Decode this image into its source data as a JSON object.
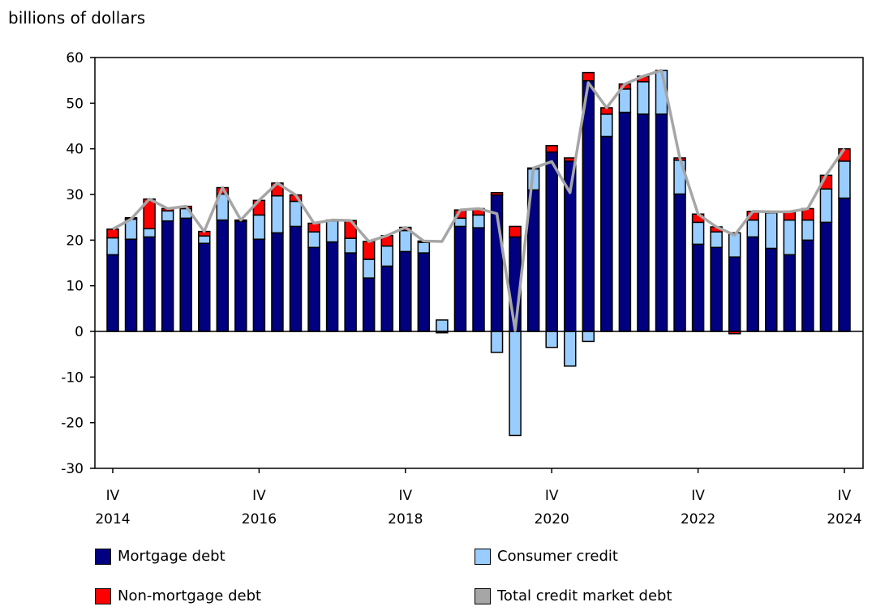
{
  "chart_data": {
    "type": "bar",
    "stacked": true,
    "ylabel": "billions of dollars",
    "ylim": [
      -30,
      60
    ],
    "yticks": [
      -30,
      -20,
      -10,
      0,
      10,
      20,
      30,
      40,
      50,
      60
    ],
    "grid": false,
    "legend_position": "bottom",
    "x_tick_labels": [
      {
        "quarter": "IV",
        "year": "2014",
        "index": 0
      },
      {
        "quarter": "IV",
        "year": "2016",
        "index": 8
      },
      {
        "quarter": "IV",
        "year": "2018",
        "index": 16
      },
      {
        "quarter": "IV",
        "year": "2020",
        "index": 24
      },
      {
        "quarter": "IV",
        "year": "2022",
        "index": 32
      },
      {
        "quarter": "IV",
        "year": "2024",
        "index": 40
      }
    ],
    "categories": [
      "2014Q4",
      "2015Q1",
      "2015Q2",
      "2015Q3",
      "2015Q4",
      "2016Q1",
      "2016Q2",
      "2016Q3",
      "2016Q4",
      "2017Q1",
      "2017Q2",
      "2017Q3",
      "2017Q4",
      "2018Q1",
      "2018Q2",
      "2018Q3",
      "2018Q4",
      "2019Q1",
      "2019Q2",
      "2019Q3",
      "2019Q4",
      "2020Q1",
      "2020Q2",
      "2020Q3",
      "2020Q4",
      "2021Q1",
      "2021Q2",
      "2021Q3",
      "2021Q4",
      "2022Q1",
      "2022Q2",
      "2022Q3",
      "2022Q4",
      "2023Q1",
      "2023Q2",
      "2023Q3",
      "2023Q4",
      "2024Q1",
      "2024Q2",
      "2024Q3",
      "2024Q4"
    ],
    "series": [
      {
        "name": "Mortgage debt",
        "color": "#000080",
        "kind": "bar",
        "values": [
          16.8,
          20.2,
          20.7,
          24.2,
          24.8,
          19.3,
          24.4,
          24.1,
          20.2,
          21.6,
          23.0,
          18.4,
          19.6,
          17.2,
          11.7,
          14.3,
          17.5,
          17.2,
          -0.3,
          23.0,
          22.7,
          29.9,
          20.7,
          31.0,
          39.3,
          37.3,
          54.9,
          42.7,
          48.0,
          47.6,
          47.6,
          30.1,
          19.1,
          18.4,
          16.3,
          20.7,
          18.2,
          16.8,
          20.0,
          23.9,
          29.2
        ]
      },
      {
        "name": "Consumer credit",
        "color": "#99CCFF",
        "kind": "bar",
        "values": [
          3.7,
          4.4,
          1.8,
          2.2,
          2.1,
          1.6,
          5.7,
          0.0,
          5.3,
          8.1,
          5.5,
          3.4,
          4.6,
          3.2,
          4.1,
          4.4,
          4.6,
          2.3,
          2.5,
          1.8,
          2.8,
          -4.6,
          -22.8,
          4.6,
          -3.5,
          -7.6,
          -2.2,
          4.9,
          5.1,
          7.1,
          9.6,
          7.4,
          4.8,
          3.4,
          5.3,
          3.7,
          7.8,
          7.6,
          4.4,
          7.3,
          8.1
        ]
      },
      {
        "name": "Non-mortgage debt",
        "color": "#FF0000",
        "kind": "bar",
        "values": [
          1.9,
          0.3,
          6.5,
          0.5,
          0.5,
          1.0,
          1.4,
          0.3,
          3.2,
          2.8,
          1.4,
          1.9,
          0.2,
          3.9,
          3.9,
          2.3,
          0.7,
          0.3,
          0.0,
          1.8,
          1.4,
          0.5,
          2.3,
          0.2,
          1.4,
          0.7,
          1.8,
          1.4,
          1.1,
          1.2,
          0.0,
          0.5,
          1.8,
          1.1,
          -0.5,
          1.9,
          0.2,
          1.8,
          2.5,
          3.0,
          2.7
        ]
      },
      {
        "name": "Total credit market debt",
        "color": "#A6A6A6",
        "kind": "line",
        "values": [
          22.4,
          24.6,
          29.0,
          26.9,
          27.4,
          21.9,
          31.5,
          24.4,
          28.7,
          32.5,
          29.9,
          23.7,
          24.4,
          24.3,
          19.7,
          21.0,
          22.8,
          19.8,
          19.7,
          26.6,
          26.9,
          25.8,
          0.2,
          35.8,
          37.2,
          30.4,
          54.5,
          49.0,
          54.2,
          55.9,
          57.2,
          38.0,
          25.7,
          22.9,
          21.1,
          26.3,
          26.2,
          26.2,
          26.9,
          34.2,
          40.0
        ]
      }
    ]
  }
}
